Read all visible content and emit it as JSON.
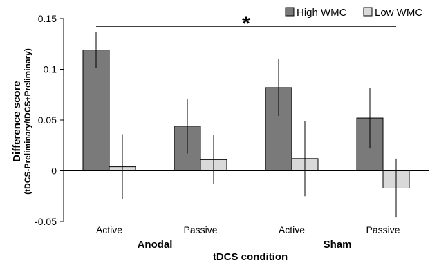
{
  "chart_data": {
    "type": "bar",
    "categories": [
      "Active",
      "Passive",
      "Active",
      "Passive"
    ],
    "groups": [
      "Anodal",
      "Sham"
    ],
    "series": [
      {
        "name": "High WMC",
        "color": "#7a7a7a",
        "values": [
          0.119,
          0.044,
          0.082,
          0.052
        ],
        "error": [
          0.018,
          0.027,
          0.028,
          0.03
        ]
      },
      {
        "name": "Low WMC",
        "color": "#d9d9d9",
        "values": [
          0.004,
          0.011,
          0.012,
          -0.017
        ],
        "error": [
          0.032,
          0.024,
          0.037,
          0.029
        ]
      }
    ],
    "xlabel": "tDCS condition",
    "ylabel": "Difference score",
    "ylabel_sub": "(tDCS-Preliminary/tDCS+Preliminary)",
    "ylim": [
      -0.05,
      0.15
    ],
    "yticks": [
      "-0.05",
      "0",
      "0.05",
      "0.1",
      "0.15"
    ],
    "significance_marker": "*",
    "grid": false,
    "legend_position": "top-right"
  }
}
